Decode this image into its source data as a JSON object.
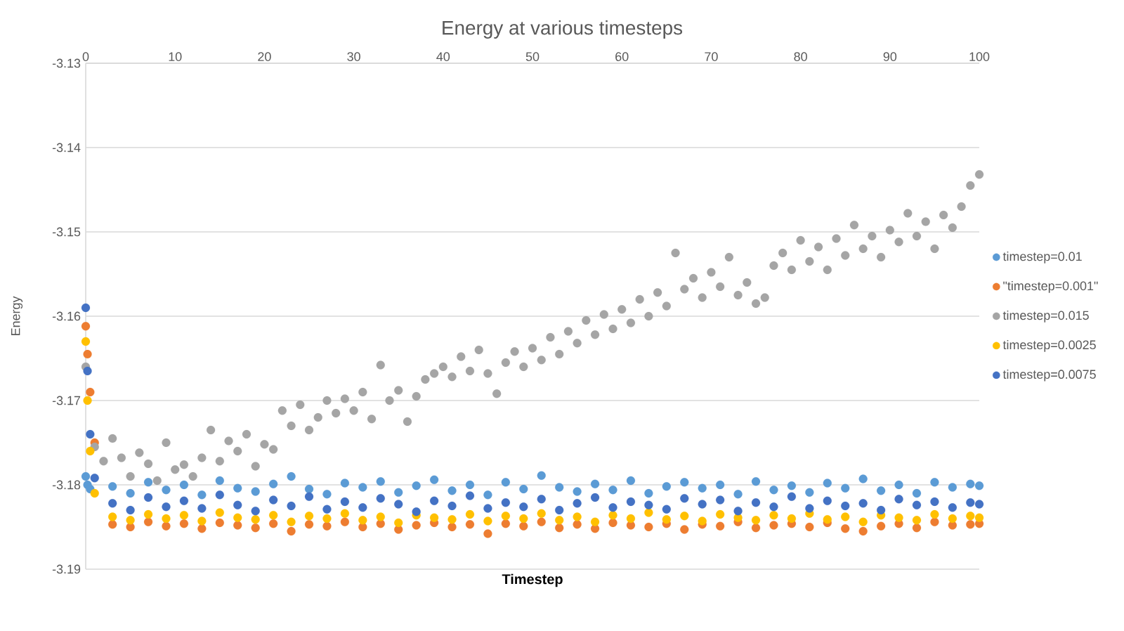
{
  "chart_data": {
    "type": "scatter",
    "title": "Energy at various timesteps",
    "xlabel": "Timestep",
    "ylabel": "Energy",
    "x": [
      0,
      0.2,
      0.5,
      1,
      3,
      5,
      7,
      9,
      11,
      13,
      15,
      17,
      19,
      21,
      23,
      25,
      27,
      29,
      31,
      33,
      35,
      37,
      39,
      41,
      43,
      45,
      47,
      49,
      51,
      53,
      55,
      57,
      59,
      61,
      63,
      65,
      67,
      69,
      71,
      73,
      75,
      77,
      79,
      81,
      83,
      85,
      87,
      89,
      91,
      93,
      95,
      97,
      99,
      100
    ],
    "series": [
      {
        "name": "timestep=0.01",
        "color": "#5b9bd5",
        "values": [
          -3.179,
          -3.18,
          -3.1805,
          null,
          -3.1802,
          -3.181,
          -3.1797,
          -3.1806,
          -3.18,
          -3.1812,
          -3.1795,
          -3.1804,
          -3.1808,
          -3.1799,
          -3.179,
          -3.1805,
          -3.1811,
          -3.1798,
          -3.1803,
          -3.1796,
          -3.1809,
          -3.1801,
          -3.1794,
          -3.1807,
          -3.18,
          -3.1812,
          -3.1797,
          -3.1805,
          -3.1789,
          -3.1803,
          -3.1808,
          -3.1799,
          -3.1806,
          -3.1795,
          -3.181,
          -3.1802,
          -3.1797,
          -3.1804,
          -3.18,
          -3.1811,
          -3.1796,
          -3.1806,
          -3.1801,
          -3.1809,
          -3.1798,
          -3.1804,
          -3.1793,
          -3.1807,
          -3.18,
          -3.181,
          -3.1797,
          -3.1803,
          -3.1799,
          -3.1801
        ]
      },
      {
        "name": "\"timestep=0.001\"",
        "color": "#ed7d31",
        "values": [
          -3.1612,
          -3.1645,
          -3.169,
          -3.175,
          -3.1847,
          -3.185,
          -3.1844,
          -3.1849,
          -3.1846,
          -3.1852,
          -3.1845,
          -3.1848,
          -3.1851,
          -3.1846,
          -3.1855,
          -3.1847,
          -3.1849,
          -3.1844,
          -3.185,
          -3.1846,
          -3.1853,
          -3.1848,
          -3.1845,
          -3.185,
          -3.1847,
          -3.1858,
          -3.1846,
          -3.1849,
          -3.1844,
          -3.1851,
          -3.1847,
          -3.1852,
          -3.1845,
          -3.1848,
          -3.185,
          -3.1846,
          -3.1853,
          -3.1847,
          -3.1849,
          -3.1844,
          -3.1851,
          -3.1848,
          -3.1846,
          -3.185,
          -3.1845,
          -3.1852,
          -3.1855,
          -3.1849,
          -3.1846,
          -3.1851,
          -3.1844,
          -3.1848,
          -3.1847,
          -3.1846
        ]
      },
      {
        "name": "timestep=0.015",
        "color": "#a5a5a5",
        "x": [
          0,
          1,
          2,
          3,
          4,
          5,
          6,
          7,
          8,
          9,
          10,
          11,
          12,
          13,
          14,
          15,
          16,
          17,
          18,
          19,
          20,
          21,
          22,
          23,
          24,
          25,
          26,
          27,
          28,
          29,
          30,
          31,
          32,
          33,
          34,
          35,
          36,
          37,
          38,
          39,
          40,
          41,
          42,
          43,
          44,
          45,
          46,
          47,
          48,
          49,
          50,
          51,
          52,
          53,
          54,
          55,
          56,
          57,
          58,
          59,
          60,
          61,
          62,
          63,
          64,
          65,
          66,
          67,
          68,
          69,
          70,
          71,
          72,
          73,
          74,
          75,
          76,
          77,
          78,
          79,
          80,
          81,
          82,
          83,
          84,
          85,
          86,
          87,
          88,
          89,
          90,
          91,
          92,
          93,
          94,
          95,
          96,
          97,
          98,
          99,
          100
        ],
        "values": [
          -3.166,
          -3.1755,
          -3.1772,
          -3.1745,
          -3.1768,
          -3.179,
          -3.1762,
          -3.1775,
          -3.1795,
          -3.175,
          -3.1782,
          -3.1776,
          -3.179,
          -3.1768,
          -3.1735,
          -3.1772,
          -3.1748,
          -3.176,
          -3.174,
          -3.1778,
          -3.1752,
          -3.1758,
          -3.1712,
          -3.173,
          -3.1705,
          -3.1735,
          -3.172,
          -3.17,
          -3.1715,
          -3.1698,
          -3.1712,
          -3.169,
          -3.1722,
          -3.1658,
          -3.17,
          -3.1688,
          -3.1725,
          -3.1695,
          -3.1675,
          -3.1668,
          -3.166,
          -3.1672,
          -3.1648,
          -3.1665,
          -3.164,
          -3.1668,
          -3.1692,
          -3.1655,
          -3.1642,
          -3.166,
          -3.1638,
          -3.1652,
          -3.1625,
          -3.1645,
          -3.1618,
          -3.1632,
          -3.1605,
          -3.1622,
          -3.1598,
          -3.1615,
          -3.1592,
          -3.1608,
          -3.158,
          -3.16,
          -3.1572,
          -3.1588,
          -3.1525,
          -3.1568,
          -3.1555,
          -3.1578,
          -3.1548,
          -3.1565,
          -3.153,
          -3.1575,
          -3.156,
          -3.1585,
          -3.1578,
          -3.154,
          -3.1525,
          -3.1545,
          -3.151,
          -3.1535,
          -3.1518,
          -3.1545,
          -3.1508,
          -3.1528,
          -3.1492,
          -3.152,
          -3.1505,
          -3.153,
          -3.1498,
          -3.1512,
          -3.1478,
          -3.1505,
          -3.1488,
          -3.152,
          -3.148,
          -3.1495,
          -3.147,
          -3.1445,
          -3.1432
        ]
      },
      {
        "name": "timestep=0.0025",
        "color": "#ffc000",
        "values": [
          -3.163,
          -3.17,
          -3.176,
          -3.181,
          -3.1838,
          -3.1842,
          -3.1835,
          -3.184,
          -3.1836,
          -3.1843,
          -3.1833,
          -3.1839,
          -3.1841,
          -3.1836,
          -3.1844,
          -3.1837,
          -3.184,
          -3.1834,
          -3.1842,
          -3.1838,
          -3.1845,
          -3.1836,
          -3.1839,
          -3.1841,
          -3.1835,
          -3.1843,
          -3.1837,
          -3.184,
          -3.1834,
          -3.1842,
          -3.1838,
          -3.1844,
          -3.1836,
          -3.184,
          -3.1833,
          -3.1841,
          -3.1837,
          -3.1843,
          -3.1835,
          -3.1839,
          -3.1842,
          -3.1836,
          -3.184,
          -3.1834,
          -3.1841,
          -3.1838,
          -3.1844,
          -3.1836,
          -3.1839,
          -3.1842,
          -3.1835,
          -3.184,
          -3.1837,
          -3.1839
        ]
      },
      {
        "name": "timestep=0.0075",
        "color": "#4472c4",
        "values": [
          -3.159,
          -3.1665,
          -3.174,
          -3.1792,
          -3.1822,
          -3.183,
          -3.1815,
          -3.1826,
          -3.1819,
          -3.1828,
          -3.1812,
          -3.1824,
          -3.1831,
          -3.1818,
          -3.1825,
          -3.1814,
          -3.1829,
          -3.182,
          -3.1827,
          -3.1816,
          -3.1823,
          -3.1832,
          -3.1819,
          -3.1825,
          -3.1813,
          -3.1828,
          -3.1821,
          -3.1826,
          -3.1817,
          -3.183,
          -3.1822,
          -3.1815,
          -3.1827,
          -3.182,
          -3.1824,
          -3.1829,
          -3.1816,
          -3.1823,
          -3.1818,
          -3.1831,
          -3.1821,
          -3.1826,
          -3.1814,
          -3.1828,
          -3.1819,
          -3.1825,
          -3.1822,
          -3.183,
          -3.1817,
          -3.1824,
          -3.182,
          -3.1827,
          -3.1821,
          -3.1823
        ]
      }
    ],
    "xlim": [
      0,
      100
    ],
    "xticks": [
      0,
      10,
      20,
      30,
      40,
      50,
      60,
      70,
      80,
      90,
      100
    ],
    "ylim": [
      -3.19,
      -3.13
    ],
    "yticks": [
      -3.19,
      -3.18,
      -3.17,
      -3.16,
      -3.15,
      -3.14,
      -3.13
    ],
    "grid": "y",
    "legend": "right",
    "marker": "circle"
  }
}
